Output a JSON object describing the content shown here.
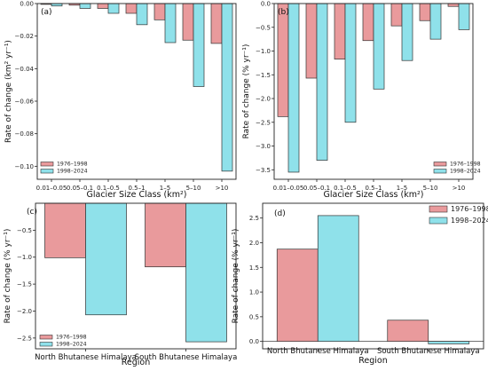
{
  "colors": {
    "s1": "#e99a9c",
    "s2": "#8fe1ea",
    "edge": "#333333"
  },
  "chart_data": [
    {
      "panel": "(a)",
      "type": "bar",
      "categories": [
        "0.01–0.05",
        "0.05–0.1",
        "0.1–0.5",
        "0.5–1",
        "1–5",
        "5–10",
        ">10"
      ],
      "series": [
        {
          "name": "1976–1998",
          "values": [
            -0.0005,
            -0.001,
            -0.003,
            -0.006,
            -0.01,
            -0.0225,
            -0.0245
          ]
        },
        {
          "name": "1998–2024",
          "values": [
            -0.0015,
            -0.003,
            -0.006,
            -0.013,
            -0.024,
            -0.051,
            -0.103
          ]
        }
      ],
      "xlabel": "Glacier Size Class (km²)",
      "ylabel": "Rate of change (km² yr⁻¹)",
      "ylim": [
        -0.108,
        0
      ],
      "yticks": [
        "0.00",
        "−0.02",
        "−0.04",
        "−0.06",
        "−0.08",
        "−0.10"
      ],
      "ytick_values": [
        0,
        -0.02,
        -0.04,
        -0.06,
        -0.08,
        -0.1
      ],
      "legend": "bottom-left"
    },
    {
      "panel": "(b)",
      "type": "bar",
      "categories": [
        "0.01–0.05",
        "0.05–0.1",
        "0.1–0.5",
        "0.5–1",
        "1–5",
        "5–10",
        ">10"
      ],
      "series": [
        {
          "name": "1976–1998",
          "values": [
            -2.38,
            -1.57,
            -1.17,
            -0.78,
            -0.47,
            -0.36,
            -0.06
          ]
        },
        {
          "name": "1998–2024",
          "values": [
            -3.55,
            -3.3,
            -2.5,
            -1.8,
            -1.2,
            -0.75,
            -0.55
          ]
        }
      ],
      "xlabel": "Glacier Size Class (km²)",
      "ylabel": "Rate of change (% yr⁻¹)",
      "ylim": [
        -3.7,
        0
      ],
      "yticks": [
        "0.0",
        "−0.5",
        "−1.0",
        "−1.5",
        "−2.0",
        "−2.5",
        "−3.0",
        "−3.5"
      ],
      "ytick_values": [
        0,
        -0.5,
        -1.0,
        -1.5,
        -2.0,
        -2.5,
        -3.0,
        -3.5
      ],
      "legend": "bottom-right"
    },
    {
      "panel": "(c)",
      "type": "bar",
      "categories": [
        "North Bhutanese Himalaya",
        "South Bhutanese Himalaya"
      ],
      "series": [
        {
          "name": "1976–1998",
          "values": [
            -1.01,
            -1.18
          ]
        },
        {
          "name": "1998–2024",
          "values": [
            -2.07,
            -2.57
          ]
        }
      ],
      "xlabel": "Region",
      "ylabel": "Rate of change (% yr⁻¹)",
      "ylim": [
        -2.7,
        0
      ],
      "yticks": [
        "−0.5",
        "−1.0",
        "−1.5",
        "−2.0",
        "−2.5"
      ],
      "ytick_values": [
        -0.5,
        -1.0,
        -1.5,
        -2.0,
        -2.5
      ],
      "legend": "bottom-left"
    },
    {
      "panel": "(d)",
      "type": "bar",
      "categories": [
        "North Bhutanese Himalaya",
        "South Bhutanese Himalaya"
      ],
      "series": [
        {
          "name": "1976–1998",
          "values": [
            1.87,
            0.43
          ]
        },
        {
          "name": "1998–2024",
          "values": [
            2.55,
            -0.05
          ]
        }
      ],
      "xlabel": "Region",
      "ylabel": "Rate of change (% yr⁻¹)",
      "ylim": [
        -0.15,
        2.8
      ],
      "yticks": [
        "0.0",
        "0.5",
        "1.0",
        "1.5",
        "2.0",
        "2.5"
      ],
      "ytick_values": [
        0,
        0.5,
        1.0,
        1.5,
        2.0,
        2.5
      ],
      "legend": "top-right"
    }
  ]
}
